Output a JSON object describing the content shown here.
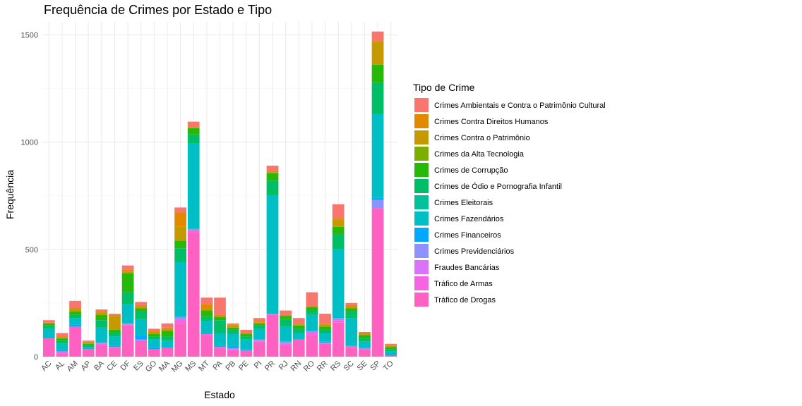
{
  "chart_data": {
    "type": "bar",
    "stacked": true,
    "title": "Frequência de Crimes por Estado e Tipo",
    "xlabel": "Estado",
    "ylabel": "Frequência",
    "ylim": [
      0,
      1560
    ],
    "yticks": [
      0,
      500,
      1000,
      1500
    ],
    "grid": true,
    "legend_title": "Tipo de Crime",
    "legend_position": "right",
    "categories": [
      "AC",
      "AL",
      "AM",
      "AP",
      "BA",
      "CE",
      "DF",
      "ES",
      "GO",
      "MA",
      "MG",
      "MS",
      "MT",
      "PA",
      "PB",
      "PE",
      "PI",
      "PR",
      "RJ",
      "RN",
      "RO",
      "RR",
      "RS",
      "SC",
      "SE",
      "SP",
      "TO"
    ],
    "series": [
      {
        "name": "Tráfico de Drogas",
        "color": "#FF61C3",
        "values": [
          85,
          15,
          140,
          35,
          55,
          40,
          145,
          75,
          35,
          40,
          155,
          580,
          100,
          40,
          30,
          30,
          70,
          195,
          55,
          80,
          100,
          60,
          160,
          45,
          35,
          690,
          5
        ]
      },
      {
        "name": "Tráfico de Armas",
        "color": "#F564E3",
        "values": [
          0,
          5,
          0,
          0,
          5,
          5,
          5,
          0,
          0,
          0,
          20,
          10,
          5,
          5,
          5,
          0,
          5,
          5,
          5,
          0,
          15,
          0,
          10,
          5,
          0,
          0,
          0
        ]
      },
      {
        "name": "Fraudes Bancárias",
        "color": "#DB72FB",
        "values": [
          0,
          0,
          0,
          0,
          0,
          0,
          0,
          0,
          0,
          0,
          0,
          0,
          0,
          0,
          0,
          0,
          0,
          0,
          0,
          0,
          0,
          0,
          0,
          0,
          0,
          0,
          0
        ]
      },
      {
        "name": "Crimes Previdenciários",
        "color": "#8F91FF",
        "values": [
          0,
          5,
          0,
          0,
          5,
          0,
          5,
          5,
          0,
          0,
          10,
          5,
          0,
          0,
          5,
          0,
          5,
          0,
          10,
          0,
          5,
          5,
          10,
          0,
          5,
          40,
          0
        ]
      },
      {
        "name": "Crimes Financeiros",
        "color": "#00A9FF",
        "values": [
          0,
          5,
          10,
          0,
          0,
          5,
          0,
          20,
          10,
          5,
          0,
          0,
          0,
          5,
          10,
          5,
          0,
          0,
          0,
          0,
          0,
          5,
          0,
          0,
          0,
          10,
          5
        ]
      },
      {
        "name": "Crimes Fazendários",
        "color": "#00BFC4",
        "values": [
          45,
          30,
          30,
          10,
          70,
          45,
          90,
          75,
          35,
          30,
          255,
          400,
          60,
          60,
          55,
          45,
          50,
          550,
          70,
          30,
          75,
          40,
          320,
          130,
          30,
          390,
          15
        ]
      },
      {
        "name": "Crimes Eleitorais",
        "color": "#00C19A",
        "values": [
          0,
          0,
          0,
          0,
          0,
          0,
          0,
          0,
          0,
          0,
          0,
          0,
          0,
          0,
          0,
          0,
          0,
          0,
          0,
          0,
          0,
          0,
          0,
          0,
          0,
          0,
          0
        ]
      },
      {
        "name": "Crimes de Ódio e Pornografia Infantil",
        "color": "#00BE67",
        "values": [
          15,
          15,
          15,
          10,
          35,
          20,
          55,
          35,
          15,
          20,
          65,
          40,
          20,
          60,
          20,
          15,
          15,
          70,
          35,
          20,
          20,
          15,
          70,
          30,
          15,
          145,
          10
        ]
      },
      {
        "name": "Crimes de Corrupção",
        "color": "#28B80A",
        "values": [
          10,
          10,
          15,
          5,
          25,
          10,
          90,
          15,
          10,
          25,
          35,
          30,
          30,
          15,
          10,
          10,
          10,
          35,
          15,
          15,
          15,
          15,
          35,
          15,
          15,
          85,
          10
        ]
      },
      {
        "name": "Crimes da Alta Tecnologia",
        "color": "#7CAE00",
        "values": [
          0,
          0,
          0,
          0,
          0,
          0,
          0,
          0,
          0,
          0,
          0,
          0,
          0,
          0,
          0,
          0,
          0,
          0,
          0,
          0,
          0,
          0,
          0,
          0,
          0,
          0,
          0
        ]
      },
      {
        "name": "Crimes Contra o Patrimônio",
        "color": "#C49A00",
        "values": [
          0,
          5,
          15,
          5,
          10,
          65,
          5,
          10,
          10,
          10,
          65,
          0,
          10,
          0,
          10,
          5,
          5,
          5,
          0,
          5,
          0,
          10,
          35,
          10,
          5,
          105,
          5
        ]
      },
      {
        "name": "Crimes Contra Direitos Humanos",
        "color": "#E18A00",
        "values": [
          5,
          5,
          0,
          5,
          5,
          5,
          10,
          5,
          5,
          5,
          65,
          5,
          20,
          10,
          5,
          0,
          5,
          5,
          5,
          5,
          5,
          5,
          5,
          5,
          5,
          5,
          5
        ]
      },
      {
        "name": "Crimes Ambientais e Contra o Patrimônio Cultural",
        "color": "#F8766D",
        "values": [
          10,
          15,
          35,
          5,
          10,
          5,
          20,
          15,
          10,
          20,
          25,
          25,
          30,
          80,
          5,
          15,
          15,
          25,
          20,
          25,
          65,
          45,
          65,
          10,
          5,
          45,
          5
        ]
      }
    ]
  }
}
